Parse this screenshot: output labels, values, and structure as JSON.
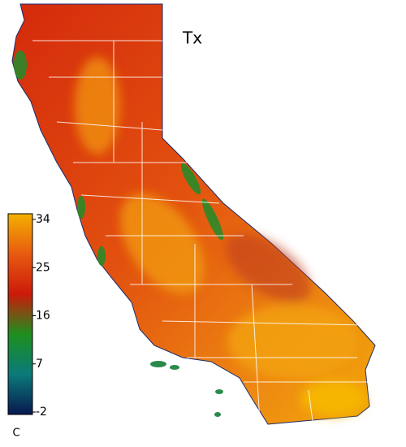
{
  "map": {
    "title": "Tx",
    "colorbar": {
      "lim": [
        -2,
        34
      ],
      "ticks": [
        -2,
        7,
        16,
        25,
        34
      ],
      "unit": "C",
      "colors": [
        "#08184f",
        "#0a7a7a",
        "#1e8f1e",
        "#cc1a0a",
        "#e85a10",
        "#f4b000"
      ]
    }
  }
}
